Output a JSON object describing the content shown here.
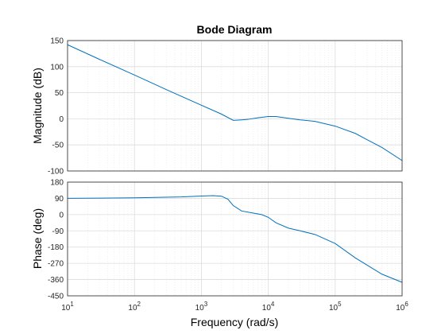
{
  "chart_data": {
    "type": "line",
    "title": "Bode Diagram",
    "xlabel": "Frequency  (rad/s)",
    "x_scale": "log",
    "xlim": [
      10,
      1000000
    ],
    "x_ticks": [
      {
        "base": "10",
        "exp": "1"
      },
      {
        "base": "10",
        "exp": "2"
      },
      {
        "base": "10",
        "exp": "3"
      },
      {
        "base": "10",
        "exp": "4"
      },
      {
        "base": "10",
        "exp": "5"
      },
      {
        "base": "10",
        "exp": "6"
      }
    ],
    "grid": true,
    "line_color": "#0072bd",
    "magnitude": {
      "ylabel": "Magnitude (dB)",
      "ylim": [
        -100,
        150
      ],
      "yticks": [
        -100,
        -50,
        0,
        50,
        100,
        150
      ],
      "x": [
        10,
        30,
        100,
        300,
        1000,
        2000,
        3000,
        4000,
        5000,
        7000,
        10000,
        13000,
        20000,
        30000,
        50000,
        100000,
        200000,
        300000,
        500000,
        1000000
      ],
      "y": [
        142,
        114,
        84,
        56,
        26,
        9,
        -3,
        -2,
        -1,
        2,
        4.5,
        4.5,
        1,
        -2,
        -5,
        -14,
        -28,
        -40,
        -55,
        -80
      ]
    },
    "phase": {
      "ylabel": "Phase (deg)",
      "ylim": [
        -450,
        180
      ],
      "yticks": [
        -450,
        -360,
        -270,
        -180,
        -90,
        0,
        90,
        180
      ],
      "x": [
        10,
        100,
        500,
        1000,
        1500,
        2000,
        2500,
        3000,
        4000,
        6000,
        8000,
        10000,
        13000,
        20000,
        30000,
        50000,
        100000,
        200000,
        500000,
        1000000
      ],
      "y": [
        90,
        93,
        98,
        103,
        105,
        102,
        85,
        50,
        20,
        8,
        0,
        -15,
        -45,
        -75,
        -90,
        -110,
        -160,
        -240,
        -330,
        -375
      ]
    }
  }
}
